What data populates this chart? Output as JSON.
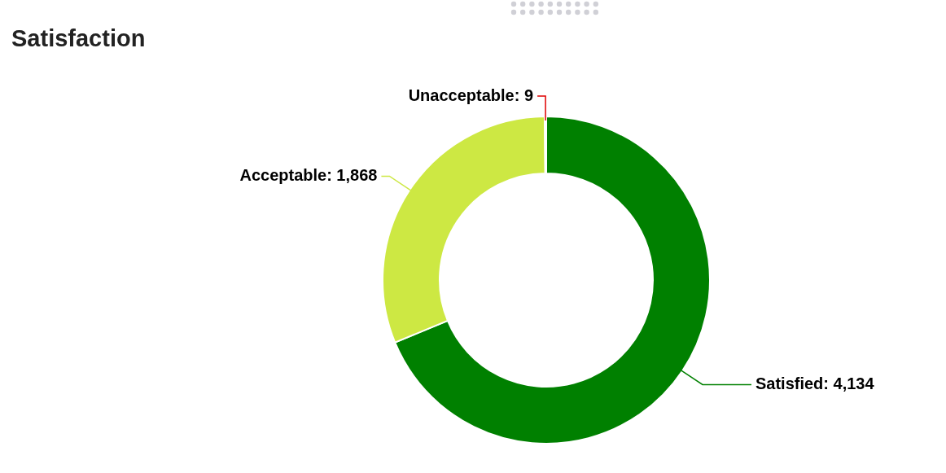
{
  "chart_data": {
    "type": "donut",
    "title": "Satisfaction",
    "categories": [
      "Satisfied",
      "Acceptable",
      "Unacceptable"
    ],
    "values": [
      4134,
      1868,
      9
    ],
    "colors": [
      "#008000",
      "#cde843",
      "#e00000"
    ],
    "value_labels": [
      "4,134",
      "1,868",
      "9"
    ]
  }
}
